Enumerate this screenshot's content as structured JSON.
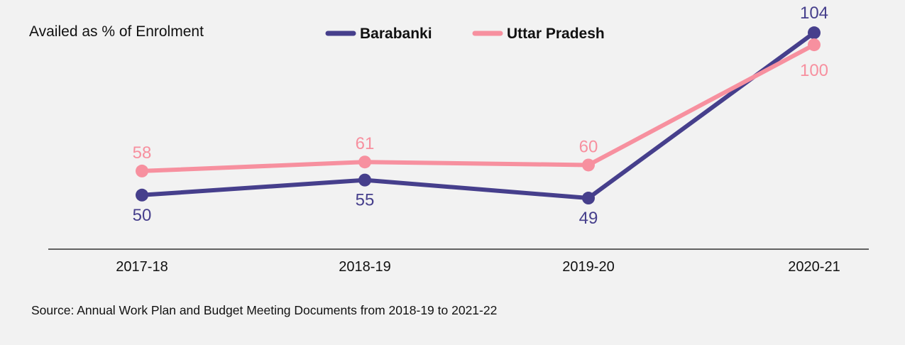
{
  "chart_data": {
    "type": "line",
    "y_title": "Availed as % of Enrolment",
    "categories": [
      "2017-18",
      "2018-19",
      "2019-20",
      "2020-21"
    ],
    "series": [
      {
        "name": "Barabanki",
        "color": "#463f8c",
        "values": [
          50,
          55,
          49,
          104
        ]
      },
      {
        "name": "Uttar Pradesh",
        "color": "#f7909f",
        "values": [
          58,
          61,
          60,
          100
        ]
      }
    ],
    "ylim": [
      32,
      109
    ],
    "grid": false,
    "legend_position": "top-center"
  },
  "source": "Source: Annual Work Plan and Budget Meeting Documents from 2018-19 to 2021-22"
}
